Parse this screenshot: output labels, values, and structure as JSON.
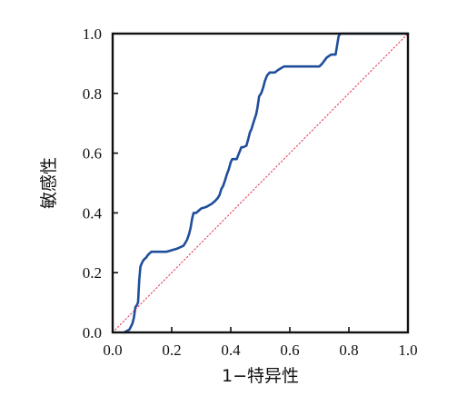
{
  "chart_data": {
    "type": "line",
    "title": "",
    "xlabel": "1−特异性",
    "ylabel": "敏感性",
    "xlim": [
      0.0,
      1.0
    ],
    "ylim": [
      0.0,
      1.0
    ],
    "grid": false,
    "xticks": [
      "0.0",
      "0.2",
      "0.4",
      "0.6",
      "0.8",
      "1.0"
    ],
    "yticks": [
      "0.0",
      "0.2",
      "0.4",
      "0.6",
      "0.8",
      "1.0"
    ],
    "colors": {
      "roc": "#1f4e9a",
      "reference": "#e0304a",
      "axis": "#111111"
    },
    "series": [
      {
        "name": "",
        "style": "solid",
        "x": [
          0.04,
          0.048,
          0.057,
          0.062,
          0.067,
          0.072,
          0.077,
          0.081,
          0.086,
          0.09,
          0.094,
          0.098,
          0.103,
          0.107,
          0.113,
          0.12,
          0.131,
          0.15,
          0.183,
          0.217,
          0.24,
          0.252,
          0.259,
          0.264,
          0.269,
          0.274,
          0.283,
          0.3,
          0.317,
          0.335,
          0.347,
          0.356,
          0.362,
          0.368,
          0.374,
          0.381,
          0.387,
          0.393,
          0.4,
          0.405,
          0.42,
          0.436,
          0.443,
          0.453,
          0.46,
          0.465,
          0.47,
          0.476,
          0.486,
          0.49,
          0.496,
          0.503,
          0.51,
          0.515,
          0.523,
          0.532,
          0.539,
          0.549,
          0.563,
          0.58,
          0.595,
          0.606,
          0.62,
          0.64,
          0.66,
          0.68,
          0.7,
          0.71,
          0.725,
          0.74,
          0.755,
          0.76,
          0.765,
          0.77,
          0.8,
          1.0
        ],
        "y": [
          0.0,
          0.005,
          0.01,
          0.02,
          0.03,
          0.05,
          0.085,
          0.09,
          0.1,
          0.175,
          0.22,
          0.23,
          0.24,
          0.245,
          0.25,
          0.26,
          0.27,
          0.27,
          0.27,
          0.28,
          0.29,
          0.31,
          0.33,
          0.35,
          0.38,
          0.4,
          0.4,
          0.415,
          0.42,
          0.43,
          0.44,
          0.45,
          0.46,
          0.48,
          0.49,
          0.51,
          0.53,
          0.545,
          0.57,
          0.58,
          0.58,
          0.62,
          0.62,
          0.625,
          0.65,
          0.67,
          0.68,
          0.7,
          0.73,
          0.75,
          0.79,
          0.8,
          0.82,
          0.84,
          0.86,
          0.87,
          0.87,
          0.87,
          0.88,
          0.89,
          0.89,
          0.89,
          0.89,
          0.89,
          0.89,
          0.89,
          0.89,
          0.9,
          0.92,
          0.93,
          0.93,
          0.96,
          0.99,
          1.0,
          1.0,
          1.0
        ]
      },
      {
        "name": "",
        "style": "dotted",
        "x": [
          0.0,
          1.0
        ],
        "y": [
          0.0,
          1.0
        ]
      }
    ]
  }
}
